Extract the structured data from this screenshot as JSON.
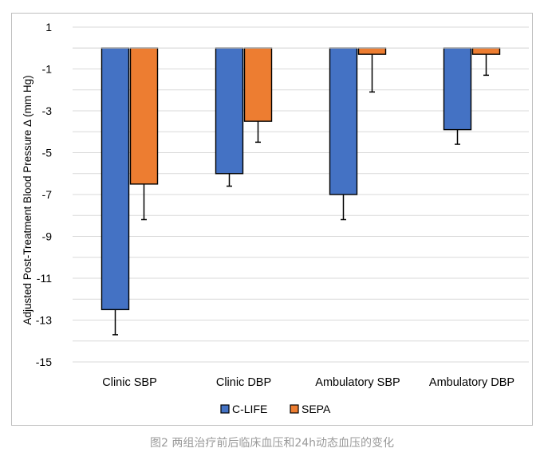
{
  "chart_data": {
    "type": "bar",
    "title": "",
    "xlabel": "",
    "ylabel": "Adjusted Post-Treatment Blood Pressure Δ (mm Hg)",
    "categories": [
      "Clinic SBP",
      "Clinic DBP",
      "Ambulatory SBP",
      "Ambulatory DBP"
    ],
    "series": [
      {
        "name": "C-LIFE",
        "color": "#4472c4",
        "values": [
          -12.5,
          -6.0,
          -7.0,
          -3.9
        ],
        "error": [
          1.2,
          0.6,
          1.2,
          0.7
        ]
      },
      {
        "name": "SEPA",
        "color": "#ed7d31",
        "values": [
          -6.5,
          -3.5,
          -0.3,
          -0.3
        ],
        "error": [
          1.7,
          1.0,
          1.8,
          1.0
        ]
      }
    ],
    "ylim": [
      -15,
      1
    ],
    "yticks": [
      1,
      -1,
      -3,
      -5,
      -7,
      -9,
      -11,
      -13,
      -15
    ],
    "ytick_labels": [
      "1",
      "-1",
      "-3",
      "-5",
      "-7",
      "-9",
      "-11",
      "-13",
      "-15"
    ],
    "grid": true,
    "legend_position": "bottom"
  },
  "caption": "图2 两组治疗前后临床血压和24h动态血压的变化"
}
